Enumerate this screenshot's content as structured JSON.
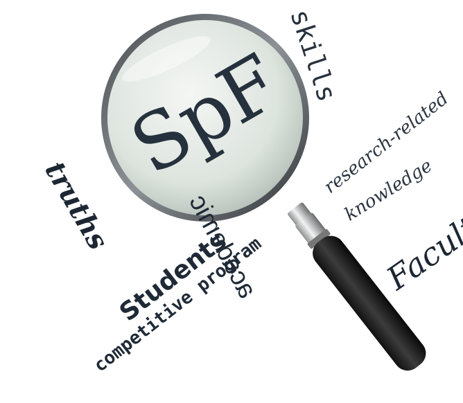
{
  "image": {
    "lens_label": "SpF",
    "words": {
      "skills": "skills",
      "research_related": "research-related",
      "knowledge": "knowledge",
      "faculty": "Faculty",
      "truths": "truths",
      "students": "Students",
      "competitive_program": "competitive program",
      "academic": "academic"
    }
  }
}
